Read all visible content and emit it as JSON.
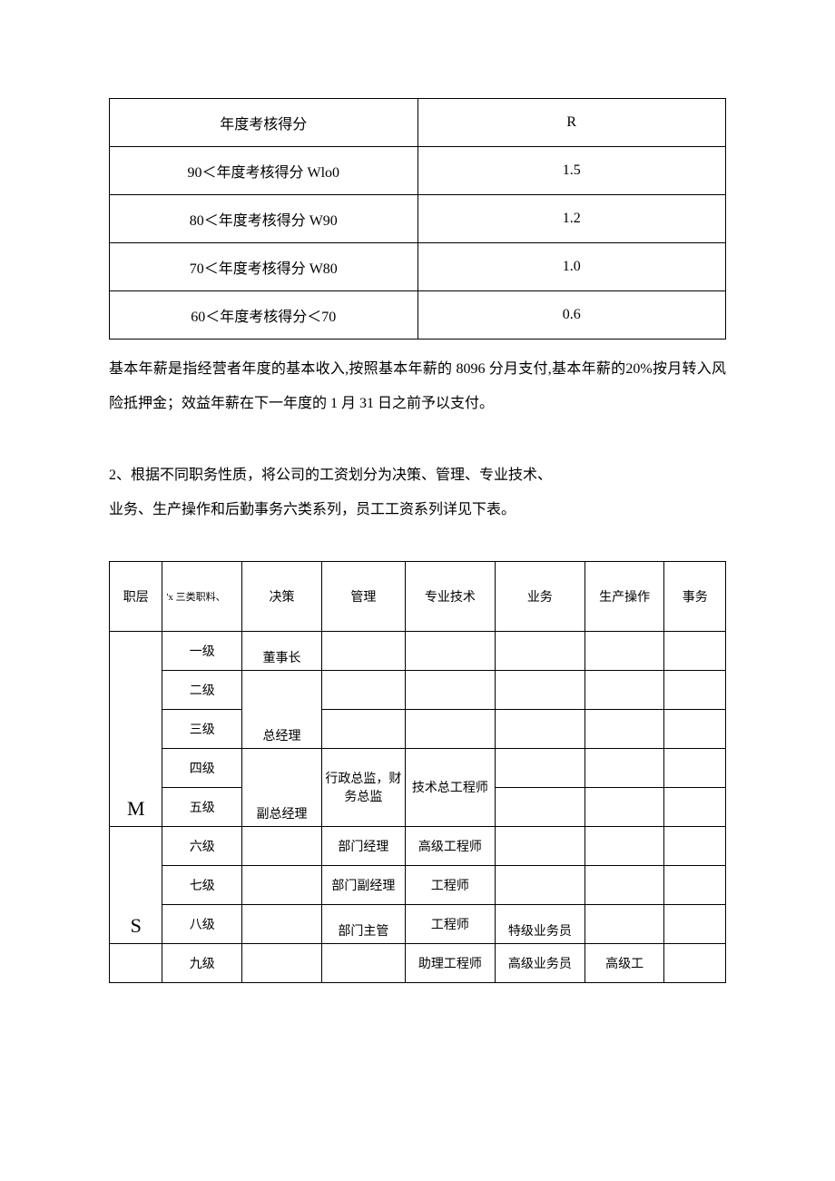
{
  "table1": {
    "header": {
      "c0": "年度考核得分",
      "c1": "R"
    },
    "rows": [
      {
        "c0": "90＜年度考核得分 Wlo0",
        "c1": "1.5"
      },
      {
        "c0": "80＜年度考核得分 W90",
        "c1": "1.2"
      },
      {
        "c0": "70＜年度考核得分 W80",
        "c1": "1.0"
      },
      {
        "c0": "60＜年度考核得分＜70",
        "c1": "0.6"
      }
    ]
  },
  "para1": "基本年薪是指经营者年度的基本收入,按照基本年薪的 8096 分月支付,基本年薪的20%按月转入风险抵押金；效益年薪在下一年度的 1 月 31 日之前予以支付。",
  "para2": "2、根据不同职务性质，将公司的工资划分为决策、管理、专业技术、",
  "para3": "业务、生产操作和后勤事务六类系列，员工工资系列详见下表。",
  "table2": {
    "header": {
      "layer": "职层",
      "subheader": "'x 三类职料、",
      "decision": "决策",
      "mgmt": "管理",
      "tech": "专业技术",
      "biz": "业务",
      "prod": "生产操作",
      "affairs": "事务"
    },
    "levels": {
      "lv1": "一级",
      "lv2": "二级",
      "lv3": "三级",
      "lv4": "四级",
      "lv5": "五级",
      "lv6": "六级",
      "lv7": "七级",
      "lv8": "八级",
      "lv9": "九级"
    },
    "groupM": "M",
    "groupS": "S",
    "decision": {
      "chairman": "董事长",
      "gm": "总经理",
      "dgm": "副总经理"
    },
    "mgmt": {
      "admin_fin": "行政总监，财务总监",
      "dept_mgr": "部门经理",
      "dept_vmgr": "部门副经理",
      "dept_sup": "部门主管"
    },
    "tech": {
      "chief_eng": "技术总工程师",
      "senior_eng": "高级工程师",
      "eng7": "工程师",
      "eng8": "工程师",
      "asst_eng": "助理工程师"
    },
    "biz": {
      "sp_sales": "特级业务员",
      "sr_sales": "高级业务员"
    },
    "prod": {
      "sr_worker": "高级工"
    }
  }
}
